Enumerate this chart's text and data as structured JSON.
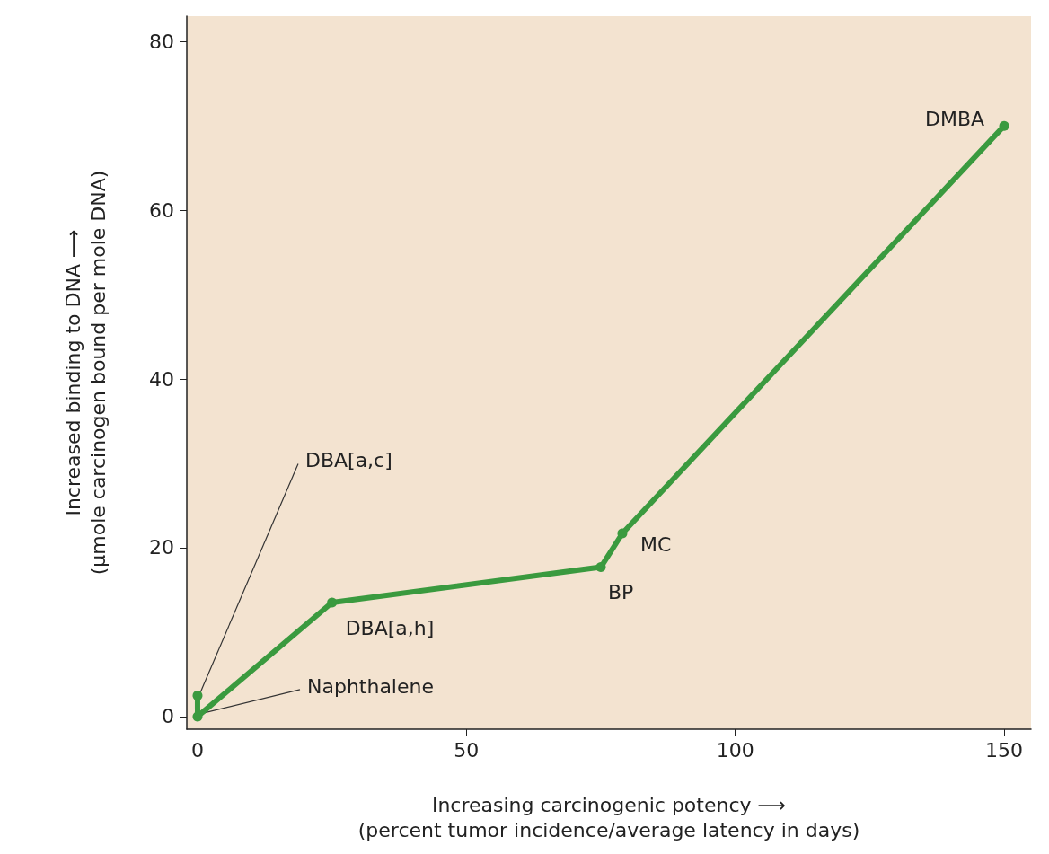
{
  "chart_data": {
    "type": "line",
    "xlabel": "Increasing carcinogenic potency ⟶\n(percent tumor incidence/average latency in days)",
    "ylabel": "Increased binding to DNA ⟶\n(µmole carcinogen bound per mole DNA)",
    "series": [
      {
        "color": "#3a9a3f",
        "x": [
          0,
          0,
          25,
          75,
          79,
          150
        ],
        "values": [
          2.5,
          0,
          13.5,
          17.7,
          21.7,
          70
        ]
      }
    ],
    "xlim": [
      -2,
      155
    ],
    "xticks": [
      0,
      50,
      100,
      150
    ],
    "ylim": [
      -1.5,
      83
    ],
    "yticks": [
      0,
      20,
      40,
      60,
      80
    ],
    "grid": false,
    "marker": "circle",
    "line_style": "solid",
    "annotations": [
      {
        "text": "DMBA",
        "x": 150,
        "y": 70
      },
      {
        "text": "MC",
        "x": 79,
        "y": 21.7
      },
      {
        "text": "BP",
        "x": 75,
        "y": 17.7
      },
      {
        "text": "DBA[a,h]",
        "x": 25,
        "y": 13.5
      },
      {
        "text": "DBA[a,c]",
        "x": 0,
        "y": 2.5
      },
      {
        "text": "Naphthalene",
        "x": 0,
        "y": 0
      }
    ]
  }
}
